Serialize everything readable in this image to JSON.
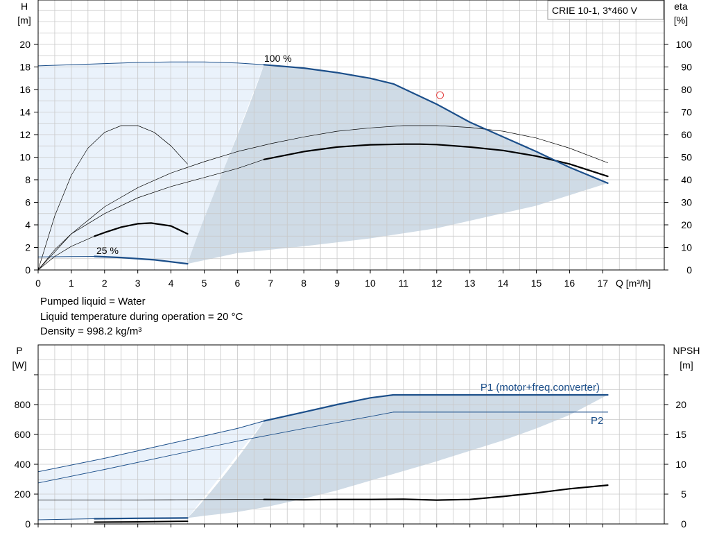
{
  "title": "CRIE 10-1, 3*460 V",
  "info_lines": [
    "Pumped liquid = Water",
    "Liquid temperature during operation = 20 °C",
    "Density = 998.2 kg/m³"
  ],
  "colors": {
    "light_fill": "#eaf2fb",
    "dark_fill": "#cfdbe6",
    "pump_curve": "#1c4f8a",
    "thick_curve": "#000000",
    "grid": "#c8c8c8",
    "duty_point": "#e23a3a"
  },
  "chart_data": [
    {
      "type": "line",
      "xlabel": "Q [m³/h]",
      "ylabel": [
        "H",
        "[m]"
      ],
      "y2label": [
        "eta",
        "[%]"
      ],
      "xlim": [
        0,
        18
      ],
      "ylim": [
        0,
        20
      ],
      "y2lim": [
        0,
        100
      ],
      "xticks": [
        0,
        1,
        2,
        3,
        4,
        5,
        6,
        7,
        8,
        9,
        10,
        11,
        12,
        13,
        14,
        15,
        16,
        17
      ],
      "yticks": [
        0,
        2,
        4,
        6,
        8,
        10,
        12,
        14,
        16,
        18,
        20
      ],
      "y2ticks": [
        0,
        10,
        20,
        30,
        40,
        50,
        60,
        70,
        80,
        90,
        100
      ],
      "grid": true,
      "curve_labels": [
        "100 %",
        "25 %"
      ],
      "duty_point": {
        "x": 12.1,
        "y": 15.5
      },
      "series": [
        {
          "role": "head-max",
          "x": [
            6.8,
            8,
            9,
            10,
            10.7,
            12,
            13,
            14,
            15,
            16,
            17.15
          ],
          "y": [
            18.2,
            17.9,
            17.5,
            17,
            16.5,
            14.7,
            13.1,
            11.8,
            10.5,
            9.1,
            7.7
          ]
        },
        {
          "role": "head-min",
          "x": [
            1.7,
            2.5,
            3.5,
            4.5
          ],
          "y": [
            1.2,
            1.1,
            0.9,
            0.55
          ]
        },
        {
          "role": "head-max-thin",
          "x": [
            0,
            1,
            2,
            3,
            4,
            5,
            6,
            6.8
          ],
          "y": [
            18.1,
            18.2,
            18.3,
            18.4,
            18.45,
            18.45,
            18.35,
            18.2
          ]
        },
        {
          "role": "head-min-thin",
          "x": [
            0,
            1,
            1.7
          ],
          "y": [
            1.15,
            1.18,
            1.2
          ]
        },
        {
          "role": "eta-max",
          "x": [
            6.8,
            8,
            9,
            10,
            11,
            11.5,
            12,
            13,
            14,
            15,
            16,
            17.15
          ],
          "y": [
            49,
            52.5,
            54.5,
            55.5,
            55.8,
            55.8,
            55.6,
            54.5,
            53,
            50.5,
            47,
            41.5
          ]
        },
        {
          "role": "eta-max-thin",
          "x": [
            0,
            0.5,
            1,
            2,
            3,
            4,
            5,
            6,
            6.8
          ],
          "y": [
            0,
            9,
            16,
            25,
            32,
            37,
            41,
            45,
            49
          ]
        },
        {
          "role": "eta-thin-upper",
          "x": [
            0,
            1,
            2,
            3,
            4,
            5,
            6,
            7,
            8,
            9,
            10,
            11,
            12,
            13,
            14,
            15,
            16,
            17.15
          ],
          "y": [
            0,
            16,
            28,
            36.5,
            43,
            48,
            52.5,
            56,
            59,
            61.5,
            63,
            64,
            64,
            63.2,
            61.5,
            58.5,
            54,
            47.5
          ]
        },
        {
          "role": "eta-thin-small",
          "x": [
            0,
            0.5,
            1,
            1.5,
            2,
            2.5,
            3,
            3.5,
            4,
            4.5
          ],
          "y": [
            0,
            24,
            42,
            54,
            61,
            64,
            64,
            61,
            55,
            47
          ]
        },
        {
          "role": "eta-min",
          "x": [
            1.7,
            2,
            2.5,
            3,
            3.4,
            4,
            4.5
          ],
          "y": [
            15,
            16.6,
            19,
            20.5,
            20.8,
            19.5,
            16
          ]
        },
        {
          "role": "eta-min-thin",
          "x": [
            0,
            0.5,
            1,
            1.7
          ],
          "y": [
            0,
            6,
            10.5,
            15
          ]
        }
      ]
    },
    {
      "type": "line",
      "xlabel": "",
      "ylabel": [
        "P",
        "[W]"
      ],
      "y2label": [
        "NPSH",
        "[m]"
      ],
      "xlim": [
        0,
        18
      ],
      "ylim": [
        0,
        1000
      ],
      "y2lim": [
        0,
        25
      ],
      "yticks": [
        0,
        200,
        400,
        600,
        800
      ],
      "y2ticks": [
        0,
        5,
        10,
        15,
        20
      ],
      "grid": true,
      "legend": [
        "P1 (motor+freq.converter)",
        "P2"
      ],
      "series": [
        {
          "role": "p1",
          "name": "P1 (motor+freq.converter)",
          "x": [
            6.8,
            8,
            9,
            10,
            10.7,
            12,
            14,
            16,
            17.15
          ],
          "y": [
            690,
            750,
            800,
            845,
            865,
            865,
            865,
            865,
            865
          ]
        },
        {
          "role": "p2",
          "name": "P2",
          "x": [
            10.7,
            12,
            14,
            16,
            17.15
          ],
          "y": [
            750,
            750,
            750,
            750,
            750
          ]
        },
        {
          "role": "p1-thin",
          "x": [
            0,
            2,
            4,
            6,
            6.8
          ],
          "y": [
            350,
            440,
            540,
            640,
            690
          ]
        },
        {
          "role": "p2-thin",
          "x": [
            0,
            2,
            4,
            6,
            8,
            10,
            10.7
          ],
          "y": [
            275,
            365,
            460,
            555,
            640,
            720,
            750
          ]
        },
        {
          "role": "p1-min",
          "x": [
            1.7,
            3,
            4.5
          ],
          "y": [
            35,
            38,
            40
          ]
        },
        {
          "role": "p1-min-thin",
          "x": [
            0,
            1.7
          ],
          "y": [
            28,
            35
          ]
        },
        {
          "role": "p2-min",
          "x": [
            1.7,
            3,
            4.5
          ],
          "y": [
            12,
            14,
            18
          ]
        },
        {
          "role": "npsh",
          "x": [
            6.8,
            8,
            9,
            10,
            11,
            12,
            13,
            14,
            15,
            16,
            17.15
          ],
          "y": [
            4.1,
            4.05,
            4.1,
            4.1,
            4.15,
            4.0,
            4.1,
            4.6,
            5.2,
            5.9,
            6.5
          ]
        },
        {
          "role": "npsh-thin",
          "x": [
            0,
            2,
            4,
            6,
            6.8
          ],
          "y": [
            4.0,
            4.0,
            4.05,
            4.1,
            4.1
          ]
        }
      ]
    }
  ]
}
